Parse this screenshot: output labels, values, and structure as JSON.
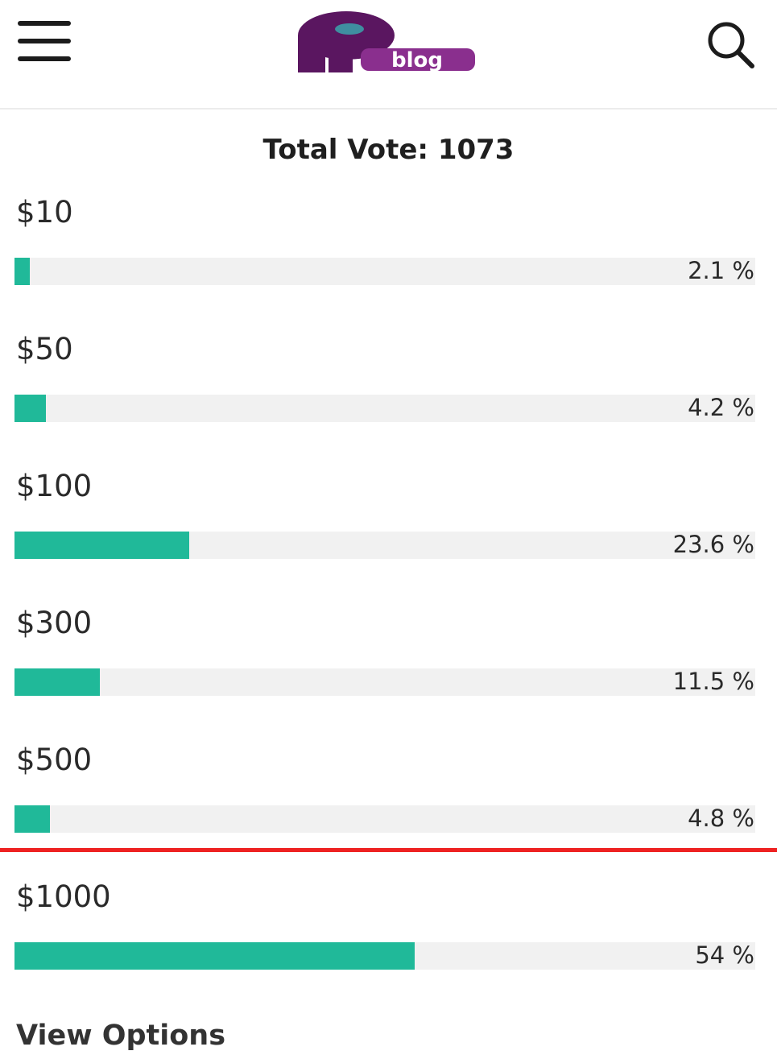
{
  "header": {
    "menu_icon": "hamburger-menu-icon",
    "logo_text": "blog",
    "search_icon": "search-icon"
  },
  "poll": {
    "total_vote_text": "Total Vote: 1073",
    "options": [
      {
        "label": "$10",
        "percent_text": "2.1 %",
        "percent": 2.1
      },
      {
        "label": "$50",
        "percent_text": "4.2 %",
        "percent": 4.2
      },
      {
        "label": "$100",
        "percent_text": "23.6 %",
        "percent": 23.6
      },
      {
        "label": "$300",
        "percent_text": "11.5 %",
        "percent": 11.5
      },
      {
        "label": "$500",
        "percent_text": "4.8 %",
        "percent": 4.8
      },
      {
        "label": "$1000",
        "percent_text": "54 %",
        "percent": 54
      }
    ],
    "view_options_label": "View Options"
  },
  "colors": {
    "bar_fill": "#20b999",
    "bar_track": "#f1f1f1",
    "red_line": "#ee2222",
    "logo_purple": "#6a1a6e",
    "logo_teal": "#3f8ea0"
  }
}
